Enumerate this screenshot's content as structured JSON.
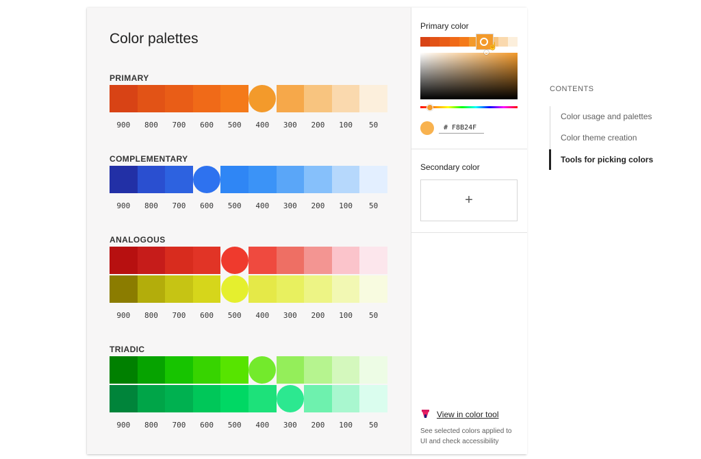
{
  "page_title": "Color palettes",
  "shade_labels": [
    "900",
    "800",
    "700",
    "600",
    "500",
    "400",
    "300",
    "200",
    "100",
    "50"
  ],
  "palettes": [
    {
      "label": "PRIMARY",
      "rows": [
        {
          "colors": [
            "#d84315",
            "#e25316",
            "#e95d17",
            "#f06a18",
            "#f47a1a",
            "#f39a2b",
            "#f6a84a",
            "#f8c47f",
            "#fad9ae",
            "#fcefdc"
          ],
          "selected": 5
        }
      ]
    },
    {
      "label": "COMPLEMENTARY",
      "rows": [
        {
          "colors": [
            "#2230a6",
            "#2a4fd0",
            "#2d62e0",
            "#2e72ef",
            "#2f86f5",
            "#3b93f7",
            "#5aa6f8",
            "#86c0fb",
            "#b6d8fc",
            "#e3efff"
          ],
          "selected": 3
        }
      ]
    },
    {
      "label": "ANALOGOUS",
      "rows": [
        {
          "colors": [
            "#b71010",
            "#c61c1a",
            "#d82c1e",
            "#e13426",
            "#ef3a2d",
            "#ef4a3f",
            "#ee6f64",
            "#f39592",
            "#fbc4cb",
            "#fce6ec"
          ],
          "selected": 4
        },
        {
          "colors": [
            "#8b7c00",
            "#b3ad0b",
            "#c6c414",
            "#d6d61b",
            "#e5ef2e",
            "#e5e948",
            "#e8f05f",
            "#edf485",
            "#f2f8b3",
            "#f8fbe0"
          ],
          "selected": 4
        }
      ]
    },
    {
      "label": "TRIADIC",
      "rows": [
        {
          "colors": [
            "#008000",
            "#06a300",
            "#17c400",
            "#37d400",
            "#57e400",
            "#73ea2c",
            "#94ee5a",
            "#b6f48f",
            "#d4f8bd",
            "#edfce5"
          ],
          "selected": 5
        },
        {
          "colors": [
            "#00843a",
            "#00a548",
            "#00b150",
            "#00c759",
            "#00d864",
            "#1de17a",
            "#2ce890",
            "#6ef1ae",
            "#a9f7cf",
            "#dafdee"
          ],
          "selected": 6
        }
      ]
    }
  ],
  "primary_panel": {
    "title": "Primary color",
    "hex_value": "# F8B24F",
    "hue_strip_colors": [
      "#d84315",
      "#e25316",
      "#e95d17",
      "#f06a18",
      "#f47a1a",
      "#f39a2b",
      "#f6a84a",
      "#f8c47f",
      "#fad9ae",
      "#fcefdc"
    ]
  },
  "secondary_panel": {
    "title": "Secondary color",
    "add_symbol": "+"
  },
  "color_tool": {
    "link_text": "View in color tool",
    "description": "See selected colors applied to UI and check accessibility"
  },
  "toc": {
    "heading": "CONTENTS",
    "items": [
      "Color usage and palettes",
      "Color theme creation",
      "Tools for picking colors"
    ],
    "active_index": 2
  }
}
